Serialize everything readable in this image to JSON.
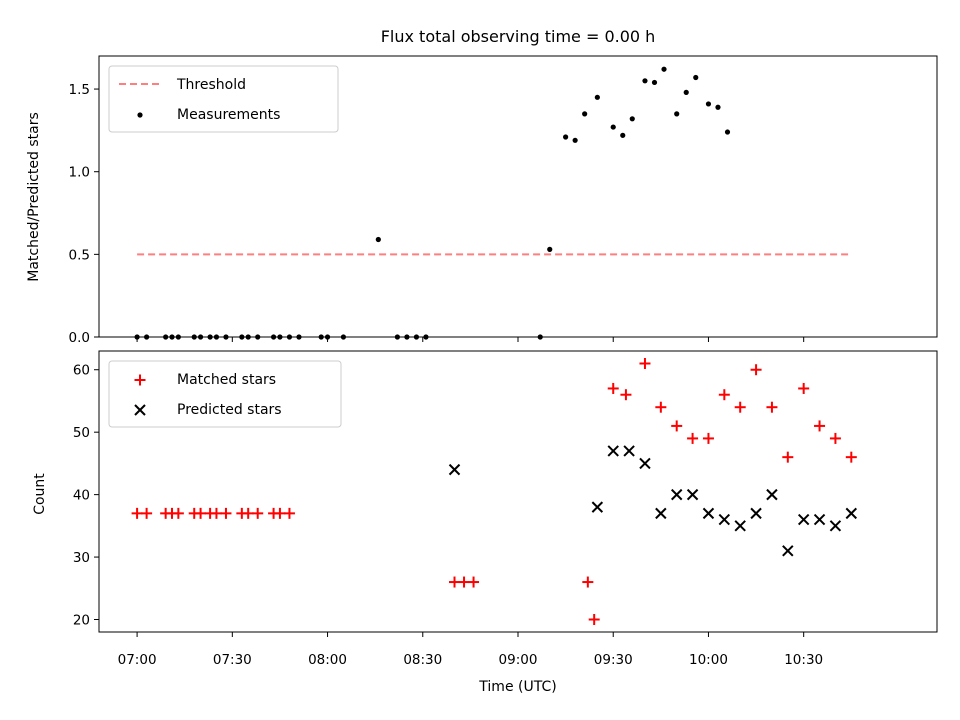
{
  "chart_data": {
    "title": "Flux total observing time = 0.00 h",
    "x_label": "Time (UTC)",
    "x_axis": {
      "type": "time",
      "range": [
        "06:48",
        "11:12"
      ],
      "ticks": [
        "07:00",
        "07:30",
        "08:00",
        "08:30",
        "09:00",
        "09:30",
        "10:00",
        "10:30"
      ]
    },
    "panels": [
      {
        "type": "scatter",
        "ylabel": "Matched/Predicted stars",
        "ylim": [
          0,
          1.7
        ],
        "yticks": [
          "0.0",
          "0.5",
          "1.0",
          "1.5"
        ],
        "legend_position": "upper left",
        "legend": [
          "Threshold",
          "Measurements"
        ],
        "threshold": {
          "name": "Threshold",
          "value": 0.5,
          "x": [
            "07:00",
            "10:45"
          ],
          "color": "#ff7f7f",
          "style": "dashed"
        },
        "series": [
          {
            "name": "Measurements",
            "marker": "dot",
            "color": "#000000",
            "points": [
              [
                "07:00",
                0.0
              ],
              [
                "07:03",
                0.0
              ],
              [
                "07:09",
                0.0
              ],
              [
                "07:11",
                0.0
              ],
              [
                "07:13",
                0.0
              ],
              [
                "07:18",
                0.0
              ],
              [
                "07:20",
                0.0
              ],
              [
                "07:23",
                0.0
              ],
              [
                "07:25",
                0.0
              ],
              [
                "07:28",
                0.0
              ],
              [
                "07:33",
                0.0
              ],
              [
                "07:35",
                0.0
              ],
              [
                "07:38",
                0.0
              ],
              [
                "07:43",
                0.0
              ],
              [
                "07:45",
                0.0
              ],
              [
                "07:48",
                0.0
              ],
              [
                "07:51",
                0.0
              ],
              [
                "07:58",
                0.0
              ],
              [
                "08:00",
                0.0
              ],
              [
                "08:05",
                0.0
              ],
              [
                "08:16",
                0.59
              ],
              [
                "08:22",
                0.0
              ],
              [
                "08:25",
                0.0
              ],
              [
                "08:28",
                0.0
              ],
              [
                "08:31",
                0.0
              ],
              [
                "09:07",
                0.0
              ],
              [
                "09:10",
                0.53
              ],
              [
                "09:15",
                1.21
              ],
              [
                "09:18",
                1.19
              ],
              [
                "09:21",
                1.35
              ],
              [
                "09:25",
                1.45
              ],
              [
                "09:30",
                1.27
              ],
              [
                "09:33",
                1.22
              ],
              [
                "09:36",
                1.32
              ],
              [
                "09:40",
                1.55
              ],
              [
                "09:43",
                1.54
              ],
              [
                "09:46",
                1.62
              ],
              [
                "09:50",
                1.35
              ],
              [
                "09:53",
                1.48
              ],
              [
                "09:56",
                1.57
              ],
              [
                "10:00",
                1.41
              ],
              [
                "10:03",
                1.39
              ],
              [
                "10:06",
                1.24
              ]
            ]
          }
        ]
      },
      {
        "type": "scatter",
        "ylabel": "Count",
        "ylim": [
          18,
          63
        ],
        "yticks": [
          "20",
          "30",
          "40",
          "50",
          "60"
        ],
        "legend_position": "upper left",
        "legend": [
          "Matched stars",
          "Predicted stars"
        ],
        "series": [
          {
            "name": "Matched stars",
            "marker": "plus",
            "color": "#ff0000",
            "points": [
              [
                "07:00",
                37
              ],
              [
                "07:03",
                37
              ],
              [
                "07:09",
                37
              ],
              [
                "07:11",
                37
              ],
              [
                "07:13",
                37
              ],
              [
                "07:18",
                37
              ],
              [
                "07:20",
                37
              ],
              [
                "07:23",
                37
              ],
              [
                "07:25",
                37
              ],
              [
                "07:28",
                37
              ],
              [
                "07:33",
                37
              ],
              [
                "07:35",
                37
              ],
              [
                "07:38",
                37
              ],
              [
                "07:43",
                37
              ],
              [
                "07:45",
                37
              ],
              [
                "07:48",
                37
              ],
              [
                "08:40",
                26
              ],
              [
                "08:43",
                26
              ],
              [
                "08:46",
                26
              ],
              [
                "09:22",
                26
              ],
              [
                "09:24",
                20
              ],
              [
                "09:30",
                57
              ],
              [
                "09:34",
                56
              ],
              [
                "09:40",
                61
              ],
              [
                "09:45",
                54
              ],
              [
                "09:50",
                51
              ],
              [
                "09:55",
                49
              ],
              [
                "10:00",
                49
              ],
              [
                "10:05",
                56
              ],
              [
                "10:10",
                54
              ],
              [
                "10:15",
                60
              ],
              [
                "10:20",
                54
              ],
              [
                "10:25",
                46
              ],
              [
                "10:30",
                57
              ],
              [
                "10:35",
                51
              ],
              [
                "10:40",
                49
              ],
              [
                "10:45",
                46
              ]
            ]
          },
          {
            "name": "Predicted stars",
            "marker": "x",
            "color": "#000000",
            "points": [
              [
                "08:40",
                44
              ],
              [
                "09:25",
                38
              ],
              [
                "09:30",
                47
              ],
              [
                "09:35",
                47
              ],
              [
                "09:40",
                45
              ],
              [
                "09:45",
                37
              ],
              [
                "09:50",
                40
              ],
              [
                "09:55",
                40
              ],
              [
                "10:00",
                37
              ],
              [
                "10:05",
                36
              ],
              [
                "10:10",
                35
              ],
              [
                "10:15",
                37
              ],
              [
                "10:20",
                40
              ],
              [
                "10:25",
                31
              ],
              [
                "10:30",
                36
              ],
              [
                "10:35",
                36
              ],
              [
                "10:40",
                35
              ],
              [
                "10:45",
                37
              ]
            ]
          }
        ]
      }
    ]
  }
}
